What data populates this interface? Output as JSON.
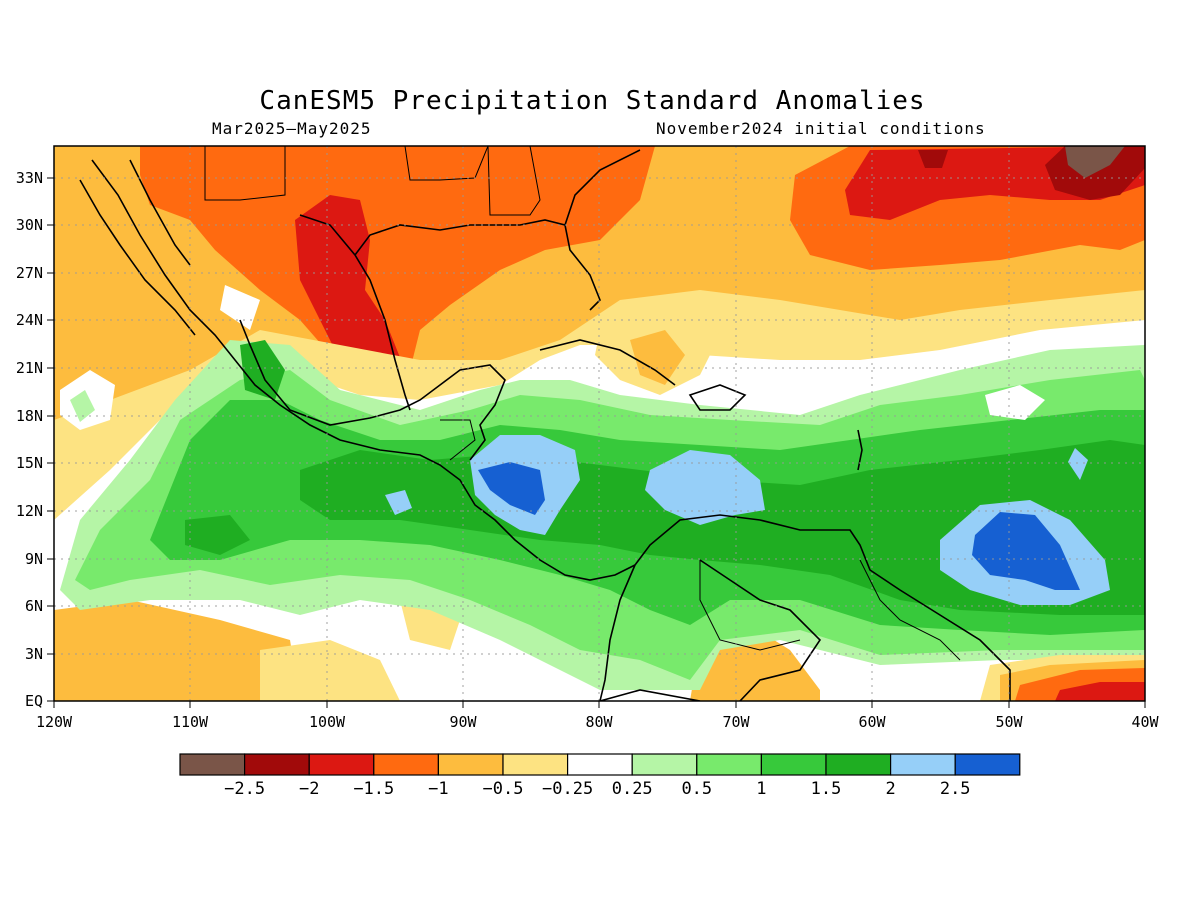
{
  "title": "CanESM5 Precipitation Standard Anomalies",
  "subtitle_left": "Mar2025–May2025",
  "subtitle_right": "November2024 initial conditions",
  "axes": {
    "lon_labels": [
      "120W",
      "110W",
      "100W",
      "90W",
      "80W",
      "70W",
      "60W",
      "50W",
      "40W"
    ],
    "lat_labels": [
      "33N",
      "30N",
      "27N",
      "24N",
      "21N",
      "18N",
      "15N",
      "12N",
      "9N",
      "6N",
      "3N",
      "EQ"
    ]
  },
  "colorbar": {
    "colors": [
      "#7a5548",
      "#a10a0a",
      "#dc1812",
      "#ff6a10",
      "#fdbc3e",
      "#fde382",
      "#ffffff",
      "#b5f5a6",
      "#78ea6c",
      "#37c93b",
      "#1fae22",
      "#96cff8",
      "#1660d2"
    ],
    "labels": [
      "−2.5",
      "−2",
      "−1.5",
      "−1",
      "−0.5",
      "−0.25",
      "0.25",
      "0.5",
      "1",
      "1.5",
      "2",
      "2.5"
    ]
  }
}
